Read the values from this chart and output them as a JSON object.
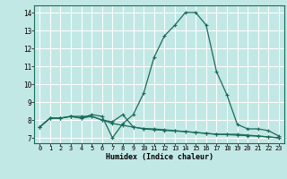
{
  "xlabel": "Humidex (Indice chaleur)",
  "background_color": "#c2e8e5",
  "grid_color": "#ffffff",
  "line_color": "#1a6b5a",
  "xlim": [
    -0.5,
    23.5
  ],
  "ylim": [
    6.7,
    14.4
  ],
  "xticks": [
    0,
    1,
    2,
    3,
    4,
    5,
    6,
    7,
    8,
    9,
    10,
    11,
    12,
    13,
    14,
    15,
    16,
    17,
    18,
    19,
    20,
    21,
    22,
    23
  ],
  "yticks": [
    7,
    8,
    9,
    10,
    11,
    12,
    13,
    14
  ],
  "curves": [
    [
      7.6,
      8.1,
      8.1,
      8.2,
      8.1,
      8.2,
      8.0,
      7.8,
      7.7,
      7.6,
      7.5,
      7.45,
      7.42,
      7.38,
      7.35,
      7.3,
      7.25,
      7.2,
      7.18,
      7.15,
      7.12,
      7.1,
      7.05,
      7.0
    ],
    [
      7.6,
      8.1,
      8.1,
      8.2,
      8.1,
      8.3,
      8.2,
      7.0,
      7.8,
      8.3,
      9.5,
      11.5,
      12.7,
      13.3,
      14.0,
      14.0,
      13.3,
      10.7,
      9.4,
      7.75,
      7.5,
      7.5,
      7.4,
      7.1
    ],
    [
      7.6,
      8.1,
      8.1,
      8.2,
      8.2,
      8.2,
      8.0,
      7.9,
      8.3,
      7.6,
      7.52,
      7.5,
      7.45,
      7.4,
      7.35,
      7.3,
      7.25,
      7.2,
      7.2,
      7.2,
      7.15,
      7.1,
      7.05,
      7.0
    ]
  ]
}
